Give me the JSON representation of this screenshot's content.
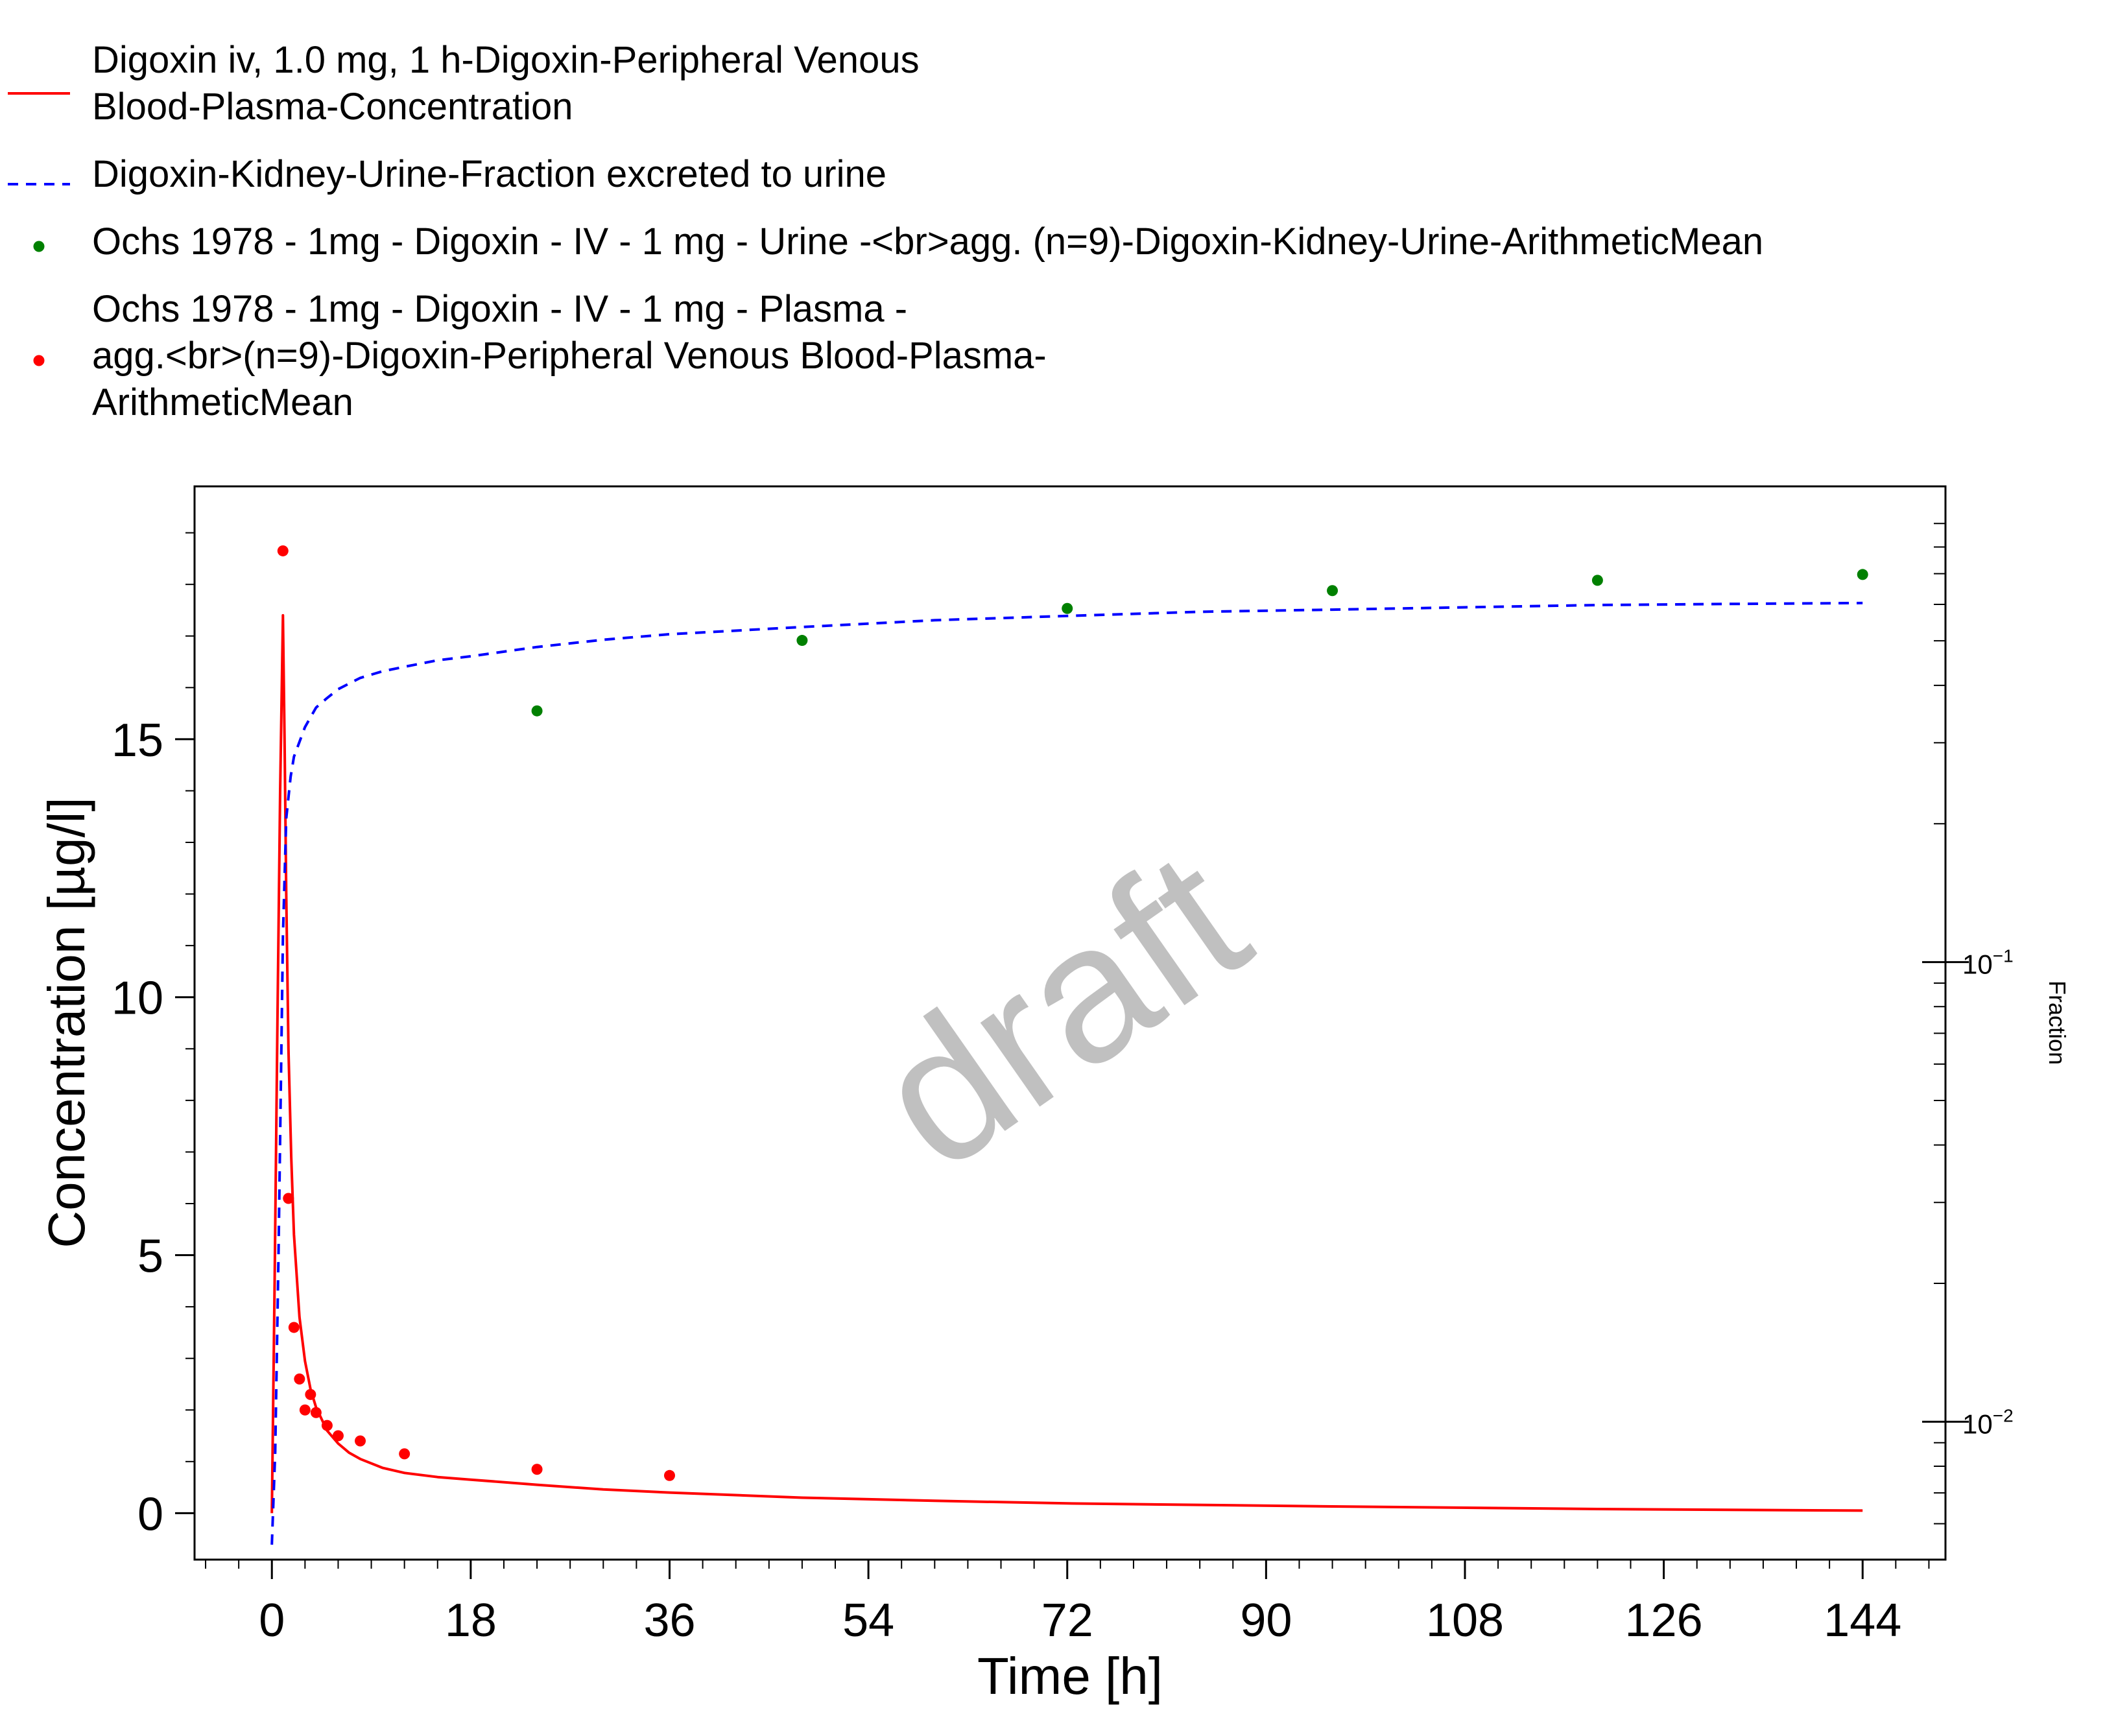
{
  "chart_data": {
    "type": "line",
    "title": "",
    "xlabel": "Time [h]",
    "ylabel": "Concentration [µg/l]",
    "y2label": "Fraction",
    "watermark": "draft",
    "xlim": [
      -7,
      151.5
    ],
    "ylim": [
      -0.9,
      19.9
    ],
    "y2lim_log10": [
      -2.3,
      0.035
    ],
    "y2_scale": "log",
    "grid": false,
    "legend_position": "top",
    "x_ticks": [
      {
        "value": 0,
        "label": "0"
      },
      {
        "value": 18,
        "label": "18"
      },
      {
        "value": 36,
        "label": "36"
      },
      {
        "value": 54,
        "label": "54"
      },
      {
        "value": 72,
        "label": "72"
      },
      {
        "value": 90,
        "label": "90"
      },
      {
        "value": 108,
        "label": "108"
      },
      {
        "value": 126,
        "label": "126"
      },
      {
        "value": 144,
        "label": "144"
      }
    ],
    "y_ticks": [
      {
        "value": 0,
        "label": "0"
      },
      {
        "value": 5,
        "label": "5"
      },
      {
        "value": 10,
        "label": "10"
      },
      {
        "value": 15,
        "label": "15"
      }
    ],
    "y2_ticks": [
      {
        "value": 0.01,
        "base": "10",
        "exp": "−2"
      },
      {
        "value": 0.1,
        "base": "10",
        "exp": "−1"
      }
    ],
    "legend": [
      {
        "lines": [
          "Digoxin iv, 1.0 mg, 1 h-Digoxin-Peripheral Venous",
          "Blood-Plasma-Concentration"
        ],
        "style": "line",
        "color": "#ff0000"
      },
      {
        "lines": [
          "Digoxin-Kidney-Urine-Fraction excreted to urine"
        ],
        "style": "dash",
        "color": "#0000ff"
      },
      {
        "lines": [
          "Ochs 1978 - 1mg - Digoxin - IV - 1 mg - Urine -<br>agg. (n=9)-Digoxin-Kidney-Urine-ArithmeticMean"
        ],
        "style": "dot",
        "color": "#008000"
      },
      {
        "lines": [
          "Ochs 1978 - 1mg - Digoxin - IV - 1 mg - Plasma -",
          "agg.<br>(n=9)-Digoxin-Peripheral Venous Blood-Plasma-",
          "ArithmeticMean"
        ],
        "style": "dot",
        "color": "#ff0000"
      }
    ],
    "series": [
      {
        "name": "Digoxin iv, 1.0 mg, 1 h-Digoxin-Peripheral Venous Blood-Plasma-Concentration",
        "axis": "left",
        "style": "line",
        "color": "#ff0000",
        "x": [
          0,
          0.25,
          0.5,
          0.75,
          1.0,
          1.15,
          1.3,
          1.5,
          1.75,
          2,
          2.5,
          3,
          3.5,
          4,
          5,
          6,
          7,
          8,
          10,
          12,
          15,
          18,
          24,
          30,
          36,
          48,
          60,
          72,
          96,
          120,
          144
        ],
        "y": [
          0,
          4.5,
          9.5,
          14.0,
          17.4,
          15.0,
          12.0,
          9.0,
          6.9,
          5.4,
          3.8,
          2.95,
          2.4,
          2.05,
          1.6,
          1.35,
          1.17,
          1.05,
          0.88,
          0.78,
          0.7,
          0.65,
          0.55,
          0.46,
          0.4,
          0.3,
          0.24,
          0.19,
          0.13,
          0.08,
          0.05
        ]
      },
      {
        "name": "Digoxin-Kidney-Urine-Fraction excreted to urine",
        "axis": "right",
        "style": "dash",
        "color": "#0000ff",
        "x": [
          0,
          0.3,
          0.6,
          1.0,
          1.3,
          1.7,
          2,
          3,
          4,
          5,
          6,
          8,
          10,
          12,
          15,
          18,
          24,
          30,
          36,
          48,
          60,
          72,
          84,
          96,
          108,
          120,
          132,
          144
        ],
        "y": [
          0.0054,
          0.0086,
          0.0232,
          0.1139,
          0.2054,
          0.2533,
          0.2799,
          0.3246,
          0.3579,
          0.3754,
          0.3925,
          0.4152,
          0.4292,
          0.4391,
          0.4535,
          0.4627,
          0.4848,
          0.5027,
          0.5168,
          0.5358,
          0.5543,
          0.5663,
          0.5782,
          0.5846,
          0.5914,
          0.5982,
          0.6015,
          0.6043
        ]
      },
      {
        "name": "Ochs 1978 - 1mg - Digoxin - IV - 1 mg - Urine -<br>agg. (n=9)-Digoxin-Kidney-Urine-ArithmeticMean",
        "axis": "right",
        "style": "dot",
        "color": "#008000",
        "x": [
          24,
          48,
          72,
          96,
          120,
          144
        ],
        "y": [
          0.352,
          0.501,
          0.588,
          0.643,
          0.677,
          0.697
        ]
      },
      {
        "name": "Ochs 1978 - 1mg - Digoxin - IV - 1 mg - Plasma -agg.<br>(n=9)-Digoxin-Peripheral Venous Blood-Plasma-ArithmeticMean",
        "axis": "left",
        "style": "dot",
        "color": "#ff0000",
        "x": [
          1,
          1.5,
          2,
          2.5,
          3,
          3.5,
          4,
          5,
          6,
          8,
          12,
          24,
          36
        ],
        "y": [
          18.65,
          6.1,
          3.6,
          2.6,
          2.0,
          2.3,
          1.95,
          1.7,
          1.5,
          1.4,
          1.15,
          0.85,
          0.73
        ]
      }
    ]
  }
}
